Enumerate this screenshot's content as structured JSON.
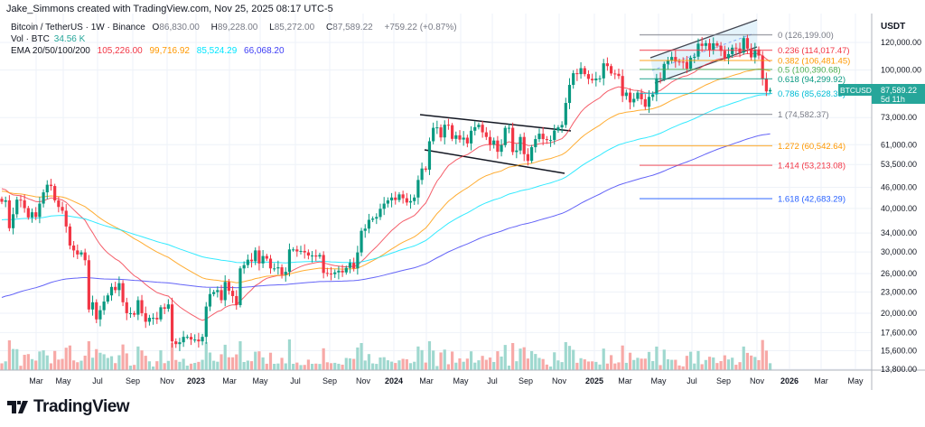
{
  "header": {
    "credit": "Jake_Simmons created with TradingView.com, Nov 25, 2025 08:17 UTC-5"
  },
  "legend": {
    "symbol": "Bitcoin / TetherUS · 1W · Binance",
    "open_label": "O",
    "open": "86,830.00",
    "high_label": "H",
    "high": "89,228.00",
    "low_label": "L",
    "low": "85,272.00",
    "close_label": "C",
    "close": "87,589.22",
    "change": "+759.22 (+0.87%)",
    "vol_label": "Vol · BTC",
    "vol": "34.56 K",
    "ema_label": "EMA 20/50/100/200",
    "ema_values": [
      "105,226.00",
      "99,716.92",
      "85,524.29",
      "66,068.20"
    ]
  },
  "price_axis": {
    "currency": "USDT",
    "scale": "log",
    "ticks": [
      120000,
      100000,
      73000,
      61000,
      53500,
      46000,
      40000,
      34000,
      30000,
      26000,
      23000,
      20000,
      17600,
      15600,
      13800
    ],
    "tick_labels": [
      "120,000.00",
      "100,000.00",
      "73,000.00",
      "61,000.00",
      "53,500.00",
      "46,000.00",
      "40,000.00",
      "34,000.00",
      "30,000.00",
      "26,000.00",
      "23,000.00",
      "20,000.00",
      "17,600.00",
      "15,600.00",
      "13,800.00"
    ],
    "last_price": 87589.22,
    "last_price_label": "87,589.22",
    "countdown": "5d 11h",
    "symbol_tag": "BTCUSDT"
  },
  "time_axis": {
    "ticks": [
      "Mar",
      "May",
      "Jul",
      "Sep",
      "Nov",
      "2023",
      "Mar",
      "May",
      "Jul",
      "Sep",
      "Nov",
      "2024",
      "Mar",
      "May",
      "Jul",
      "Sep",
      "Nov",
      "2025",
      "Mar",
      "May",
      "Jul",
      "Sep",
      "Nov",
      "2026",
      "Mar",
      "May"
    ]
  },
  "colors": {
    "up": "#089981",
    "down": "#f23645",
    "ema20": "#f23645",
    "ema50": "#ff9800",
    "ema100": "#00e5ff",
    "ema200": "#3d3df5",
    "grid": "#eef2f8",
    "tag": "#26a69a"
  },
  "fib_levels": [
    {
      "ratio": "0",
      "price": 126199.0,
      "label": "0 (126,199.00)",
      "color": "#787b86"
    },
    {
      "ratio": "0.236",
      "price": 114017.47,
      "label": "0.236 (114,017.47)",
      "color": "#f23645"
    },
    {
      "ratio": "0.382",
      "price": 106481.45,
      "label": "0.382 (106,481.45)",
      "color": "#ff9800"
    },
    {
      "ratio": "0.5",
      "price": 100390.68,
      "label": "0.5 (100,390.68)",
      "color": "#4caf50"
    },
    {
      "ratio": "0.618",
      "price": 94299.92,
      "label": "0.618 (94,299.92)",
      "color": "#089981"
    },
    {
      "ratio": "0.786",
      "price": 85628.33,
      "label": "0.786 (85,628.33)",
      "color": "#00bcd4"
    },
    {
      "ratio": "1",
      "price": 74582.37,
      "label": "1 (74,582.37)",
      "color": "#787b86"
    },
    {
      "ratio": "1.272",
      "price": 60542.64,
      "label": "1.272 (60,542.64)",
      "color": "#ff9800"
    },
    {
      "ratio": "1.414",
      "price": 53213.08,
      "label": "1.414 (53,213.08)",
      "color": "#f23645"
    },
    {
      "ratio": "1.618",
      "price": 42683.29,
      "label": "1.618 (42,683.29)",
      "color": "#2962ff"
    }
  ],
  "chart_data": {
    "type": "candlestick",
    "interval": "1W",
    "first_week": "2022-01",
    "ema_start": [
      46000,
      45000,
      37000,
      22000
    ],
    "weekly_close_k": [
      41.8,
      42.2,
      35.1,
      38.5,
      42.4,
      42.2,
      40.1,
      37.7,
      39.0,
      37.8,
      41.3,
      44.5,
      46.8,
      46.4,
      42.2,
      40.4,
      39.4,
      35.5,
      31.3,
      30.3,
      29.5,
      29.9,
      28.4,
      20.5,
      21.5,
      19.2,
      20.4,
      21.6,
      22.5,
      23.8,
      23.3,
      24.4,
      21.5,
      20.0,
      20.0,
      19.8,
      21.8,
      20.0,
      18.9,
      19.4,
      19.4,
      19.2,
      20.8,
      20.6,
      21.2,
      16.6,
      16.3,
      16.5,
      17.1,
      17.1,
      16.8,
      16.8,
      16.6,
      17.1,
      20.9,
      22.7,
      23.0,
      23.3,
      21.8,
      24.6,
      23.2,
      22.4,
      21.1,
      26.9,
      27.5,
      28.5,
      28.2,
      30.3,
      27.8,
      29.2,
      28.7,
      26.9,
      26.9,
      27.1,
      25.8,
      26.3,
      30.5,
      30.5,
      30.1,
      30.2,
      29.9,
      29.3,
      29.3,
      29.1,
      29.4,
      26.1,
      26.0,
      25.9,
      26.2,
      26.5,
      26.2,
      27.0,
      27.9,
      26.9,
      29.9,
      34.5,
      35.0,
      37.1,
      37.4,
      37.8,
      39.9,
      41.3,
      42.2,
      43.0,
      42.3,
      43.9,
      42.8,
      41.6,
      42.0,
      43.0,
      48.3,
      52.1,
      51.7,
      62.4,
      68.2,
      68.4,
      64.0,
      69.6,
      69.4,
      63.4,
      64.9,
      63.1,
      63.9,
      61.5,
      66.9,
      68.5,
      69.6,
      66.2,
      64.2,
      61.0,
      62.7,
      58.2,
      60.8,
      68.2,
      68.2,
      58.1,
      58.7,
      64.2,
      57.3,
      54.8,
      60.0,
      63.3,
      65.6,
      63.3,
      62.9,
      62.9,
      67.0,
      68.4,
      69.5,
      80.4,
      90.6,
      97.9,
      97.3,
      101.2,
      97.3,
      94.3,
      93.4,
      94.5,
      94.6,
      104.5,
      102.6,
      97.7,
      97.5,
      96.1,
      84.2,
      86.1,
      80.7,
      82.6,
      86.1,
      82.4,
      78.4,
      83.7,
      85.1,
      94.6,
      94.3,
      104.1,
      106.4,
      109.0,
      105.7,
      105.6,
      105.5,
      100.9,
      108.4,
      109.2,
      119.0,
      117.3,
      119.4,
      114.2,
      119.3,
      117.4,
      113.5,
      108.2,
      111.1,
      115.9,
      115.3,
      112.2,
      123.5,
      115.2,
      108.7,
      114.5,
      110.0,
      94.5,
      86.8,
      87.6
    ]
  },
  "logo": {
    "text": "TradingView"
  }
}
